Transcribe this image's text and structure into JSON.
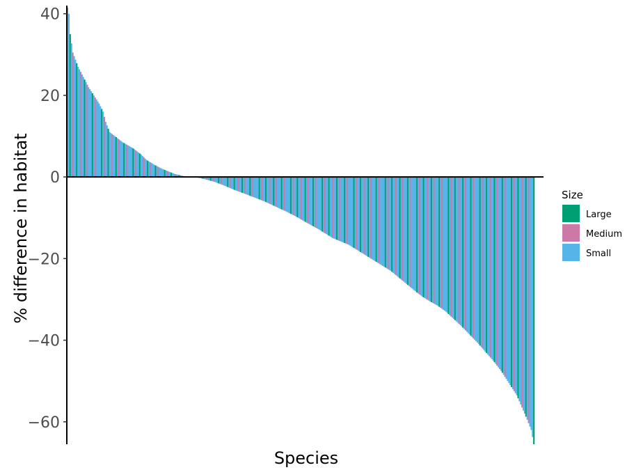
{
  "chart_data": {
    "type": "bar",
    "xlabel": "Species",
    "ylabel": "% difference in habitat",
    "ylim": [
      -65.5,
      42
    ],
    "yticks": [
      40,
      20,
      0,
      -20,
      -40,
      -60
    ],
    "ytick_labels": [
      "40",
      "20",
      "0",
      "−20",
      "−40",
      "−60"
    ],
    "grid": false,
    "legend": {
      "title": "Size",
      "placement": "right",
      "entries": [
        {
          "label": "Large",
          "color": "#009E73"
        },
        {
          "label": "Medium",
          "color": "#CC79A7"
        },
        {
          "label": "Small",
          "color": "#56B4E9"
        }
      ]
    },
    "category_count": 356,
    "value_curve_note_free": true,
    "curve_points": [
      [
        0,
        41.5
      ],
      [
        1,
        40
      ],
      [
        2,
        35
      ],
      [
        4,
        30.5
      ],
      [
        8,
        27
      ],
      [
        12,
        24.5
      ],
      [
        16,
        22
      ],
      [
        20,
        20
      ],
      [
        24,
        18
      ],
      [
        27,
        16
      ],
      [
        29,
        13.5
      ],
      [
        32,
        11
      ],
      [
        36,
        10
      ],
      [
        42,
        8.5
      ],
      [
        50,
        7
      ],
      [
        56,
        5.5
      ],
      [
        60,
        4.2
      ],
      [
        66,
        3
      ],
      [
        72,
        2
      ],
      [
        78,
        1.2
      ],
      [
        82,
        0.7
      ],
      [
        86,
        0.4
      ],
      [
        89,
        0.15
      ],
      [
        92,
        0.0
      ],
      [
        98,
        -0.1
      ],
      [
        104,
        -0.5
      ],
      [
        112,
        -1.2
      ],
      [
        120,
        -2.2
      ],
      [
        128,
        -3.3
      ],
      [
        134,
        -4.0
      ],
      [
        142,
        -5.0
      ],
      [
        150,
        -6.0
      ],
      [
        158,
        -7.2
      ],
      [
        166,
        -8.4
      ],
      [
        174,
        -9.7
      ],
      [
        182,
        -11.2
      ],
      [
        190,
        -12.6
      ],
      [
        196,
        -13.8
      ],
      [
        202,
        -15.0
      ],
      [
        208,
        -15.8
      ],
      [
        214,
        -16.6
      ],
      [
        222,
        -18.2
      ],
      [
        230,
        -19.8
      ],
      [
        238,
        -21.4
      ],
      [
        246,
        -23.0
      ],
      [
        252,
        -24.6
      ],
      [
        258,
        -26.2
      ],
      [
        264,
        -27.8
      ],
      [
        270,
        -29.3
      ],
      [
        276,
        -30.5
      ],
      [
        282,
        -31.6
      ],
      [
        288,
        -33.0
      ],
      [
        294,
        -34.8
      ],
      [
        300,
        -36.6
      ],
      [
        306,
        -38.6
      ],
      [
        312,
        -40.6
      ],
      [
        318,
        -42.8
      ],
      [
        324,
        -45.0
      ],
      [
        330,
        -47.5
      ],
      [
        336,
        -50.5
      ],
      [
        342,
        -53.5
      ],
      [
        346,
        -56.5
      ],
      [
        350,
        -59.5
      ],
      [
        353,
        -62.0
      ],
      [
        355,
        -65.5
      ]
    ],
    "size_pattern": [
      "Small",
      "Small",
      "Large",
      "Small",
      "Medium",
      "Small",
      "Small",
      "Large",
      "Small",
      "Small",
      "Medium",
      "Small",
      "Small",
      "Large",
      "Small",
      "Medium",
      "Small",
      "Small",
      "Small",
      "Large",
      "Small",
      "Medium",
      "Small",
      "Small"
    ]
  }
}
